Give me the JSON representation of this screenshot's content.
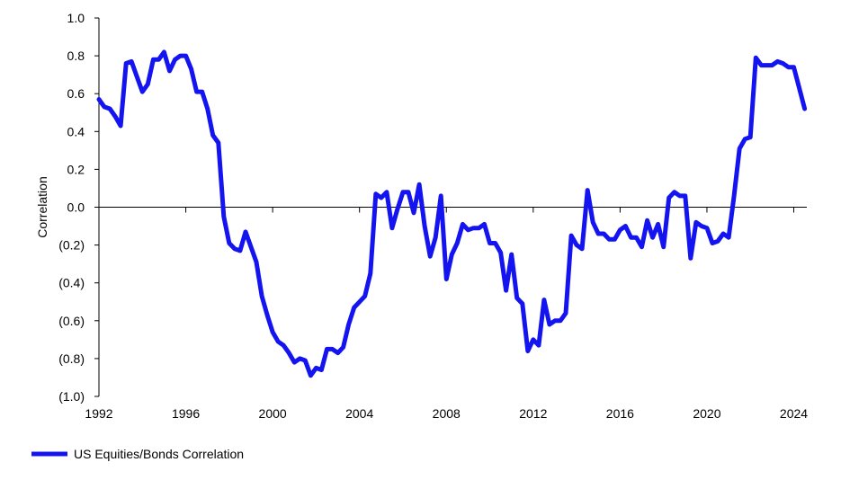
{
  "chart_data": {
    "type": "line",
    "title": "",
    "xlabel": "",
    "ylabel": "Correlation",
    "xlim": [
      1992,
      2024.6
    ],
    "ylim": [
      -1.0,
      1.0
    ],
    "x_ticks": [
      1992,
      1996,
      2000,
      2004,
      2008,
      2012,
      2016,
      2020,
      2024
    ],
    "y_ticks": [
      {
        "value": 1.0,
        "label": "1.0"
      },
      {
        "value": 0.8,
        "label": "0.8"
      },
      {
        "value": 0.6,
        "label": "0.6"
      },
      {
        "value": 0.4,
        "label": "0.4"
      },
      {
        "value": 0.2,
        "label": "0.2"
      },
      {
        "value": 0.0,
        "label": "0.0"
      },
      {
        "value": -0.2,
        "label": "(0.2)"
      },
      {
        "value": -0.4,
        "label": "(0.4)"
      },
      {
        "value": -0.6,
        "label": "(0.6)"
      },
      {
        "value": -0.8,
        "label": "(0.8)"
      },
      {
        "value": -1.0,
        "label": "(1.0)"
      }
    ],
    "grid": false,
    "legend_position": "bottom-left",
    "colors": {
      "series": "#1414f0",
      "negative_tick": "#e00000",
      "positive_tick": "#000000",
      "axis": "#000000"
    },
    "series": [
      {
        "name": "US Equities/Bonds Correlation",
        "points": [
          [
            1992.0,
            0.57
          ],
          [
            1992.25,
            0.53
          ],
          [
            1992.5,
            0.52
          ],
          [
            1992.75,
            0.48
          ],
          [
            1993.0,
            0.43
          ],
          [
            1993.25,
            0.76
          ],
          [
            1993.5,
            0.77
          ],
          [
            1993.75,
            0.69
          ],
          [
            1994.0,
            0.61
          ],
          [
            1994.25,
            0.65
          ],
          [
            1994.5,
            0.78
          ],
          [
            1994.75,
            0.78
          ],
          [
            1995.0,
            0.82
          ],
          [
            1995.25,
            0.72
          ],
          [
            1995.5,
            0.78
          ],
          [
            1995.75,
            0.8
          ],
          [
            1996.0,
            0.8
          ],
          [
            1996.25,
            0.73
          ],
          [
            1996.5,
            0.61
          ],
          [
            1996.75,
            0.61
          ],
          [
            1997.0,
            0.52
          ],
          [
            1997.25,
            0.38
          ],
          [
            1997.5,
            0.34
          ],
          [
            1997.75,
            -0.05
          ],
          [
            1998.0,
            -0.19
          ],
          [
            1998.25,
            -0.22
          ],
          [
            1998.5,
            -0.23
          ],
          [
            1998.75,
            -0.13
          ],
          [
            1999.0,
            -0.21
          ],
          [
            1999.25,
            -0.29
          ],
          [
            1999.5,
            -0.47
          ],
          [
            1999.75,
            -0.57
          ],
          [
            2000.0,
            -0.66
          ],
          [
            2000.25,
            -0.71
          ],
          [
            2000.5,
            -0.73
          ],
          [
            2000.75,
            -0.77
          ],
          [
            2001.0,
            -0.82
          ],
          [
            2001.25,
            -0.8
          ],
          [
            2001.5,
            -0.81
          ],
          [
            2001.75,
            -0.89
          ],
          [
            2002.0,
            -0.85
          ],
          [
            2002.25,
            -0.86
          ],
          [
            2002.5,
            -0.75
          ],
          [
            2002.75,
            -0.75
          ],
          [
            2003.0,
            -0.77
          ],
          [
            2003.25,
            -0.74
          ],
          [
            2003.5,
            -0.62
          ],
          [
            2003.75,
            -0.53
          ],
          [
            2004.0,
            -0.5
          ],
          [
            2004.25,
            -0.47
          ],
          [
            2004.5,
            -0.35
          ],
          [
            2004.75,
            0.07
          ],
          [
            2005.0,
            0.05
          ],
          [
            2005.25,
            0.08
          ],
          [
            2005.5,
            -0.11
          ],
          [
            2005.75,
            -0.01
          ],
          [
            2006.0,
            0.08
          ],
          [
            2006.25,
            0.08
          ],
          [
            2006.5,
            -0.03
          ],
          [
            2006.75,
            0.12
          ],
          [
            2007.0,
            -0.1
          ],
          [
            2007.25,
            -0.26
          ],
          [
            2007.5,
            -0.16
          ],
          [
            2007.75,
            0.06
          ],
          [
            2008.0,
            -0.38
          ],
          [
            2008.25,
            -0.25
          ],
          [
            2008.5,
            -0.19
          ],
          [
            2008.75,
            -0.09
          ],
          [
            2009.0,
            -0.12
          ],
          [
            2009.25,
            -0.11
          ],
          [
            2009.5,
            -0.11
          ],
          [
            2009.75,
            -0.09
          ],
          [
            2010.0,
            -0.19
          ],
          [
            2010.25,
            -0.19
          ],
          [
            2010.5,
            -0.24
          ],
          [
            2010.75,
            -0.44
          ],
          [
            2011.0,
            -0.25
          ],
          [
            2011.25,
            -0.48
          ],
          [
            2011.5,
            -0.51
          ],
          [
            2011.75,
            -0.76
          ],
          [
            2012.0,
            -0.7
          ],
          [
            2012.25,
            -0.73
          ],
          [
            2012.5,
            -0.49
          ],
          [
            2012.75,
            -0.62
          ],
          [
            2013.0,
            -0.6
          ],
          [
            2013.25,
            -0.6
          ],
          [
            2013.5,
            -0.56
          ],
          [
            2013.75,
            -0.15
          ],
          [
            2014.0,
            -0.2
          ],
          [
            2014.25,
            -0.22
          ],
          [
            2014.5,
            0.09
          ],
          [
            2014.75,
            -0.08
          ],
          [
            2015.0,
            -0.14
          ],
          [
            2015.25,
            -0.14
          ],
          [
            2015.5,
            -0.17
          ],
          [
            2015.75,
            -0.17
          ],
          [
            2016.0,
            -0.12
          ],
          [
            2016.25,
            -0.1
          ],
          [
            2016.5,
            -0.16
          ],
          [
            2016.75,
            -0.16
          ],
          [
            2017.0,
            -0.21
          ],
          [
            2017.25,
            -0.07
          ],
          [
            2017.5,
            -0.16
          ],
          [
            2017.75,
            -0.09
          ],
          [
            2018.0,
            -0.21
          ],
          [
            2018.25,
            0.05
          ],
          [
            2018.5,
            0.08
          ],
          [
            2018.75,
            0.06
          ],
          [
            2019.0,
            0.06
          ],
          [
            2019.25,
            -0.27
          ],
          [
            2019.5,
            -0.08
          ],
          [
            2019.75,
            -0.1
          ],
          [
            2020.0,
            -0.11
          ],
          [
            2020.25,
            -0.19
          ],
          [
            2020.5,
            -0.18
          ],
          [
            2020.75,
            -0.14
          ],
          [
            2021.0,
            -0.16
          ],
          [
            2021.25,
            0.06
          ],
          [
            2021.5,
            0.31
          ],
          [
            2021.75,
            0.36
          ],
          [
            2022.0,
            0.37
          ],
          [
            2022.25,
            0.79
          ],
          [
            2022.5,
            0.75
          ],
          [
            2022.75,
            0.75
          ],
          [
            2023.0,
            0.75
          ],
          [
            2023.25,
            0.77
          ],
          [
            2023.5,
            0.76
          ],
          [
            2023.75,
            0.74
          ],
          [
            2024.0,
            0.74
          ],
          [
            2024.5,
            0.52
          ]
        ]
      }
    ]
  }
}
